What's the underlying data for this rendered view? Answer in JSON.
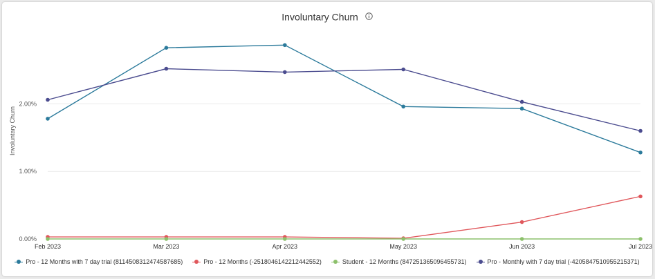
{
  "chart_data": {
    "type": "line",
    "title": "Involuntary Churn",
    "ylabel": "Involuntary Churn",
    "xlabel": "",
    "categories": [
      "Feb 2023",
      "Mar 2023",
      "Apr 2023",
      "May 2023",
      "Jun 2023",
      "Jul 2023"
    ],
    "yticks": [
      "0.00%",
      "1.00%",
      "2.00%"
    ],
    "ylim": [
      0,
      3.2
    ],
    "grid": true,
    "legend": "bottom",
    "series": [
      {
        "name": "Pro - 12 Months with 7 day trial (8114508312474587685)",
        "color": "#2b7a9b",
        "values": [
          1.78,
          2.83,
          2.87,
          1.96,
          1.93,
          1.28
        ]
      },
      {
        "name": "Pro - 12 Months (-2518046142212442552)",
        "color": "#e0575b",
        "values": [
          0.03,
          0.03,
          0.03,
          0.01,
          0.25,
          0.63
        ]
      },
      {
        "name": "Student - 12 Months (847251365096455731)",
        "color": "#8cc06b",
        "values": [
          0.0,
          0.0,
          0.0,
          0.0,
          0.0,
          0.0
        ]
      },
      {
        "name": "Pro - Monthly with 7 day trial (-4205847510955215371)",
        "color": "#4b4c8f",
        "values": [
          2.06,
          2.52,
          2.47,
          2.51,
          2.03,
          1.6
        ]
      }
    ]
  },
  "info_icon": "info-circle-icon"
}
